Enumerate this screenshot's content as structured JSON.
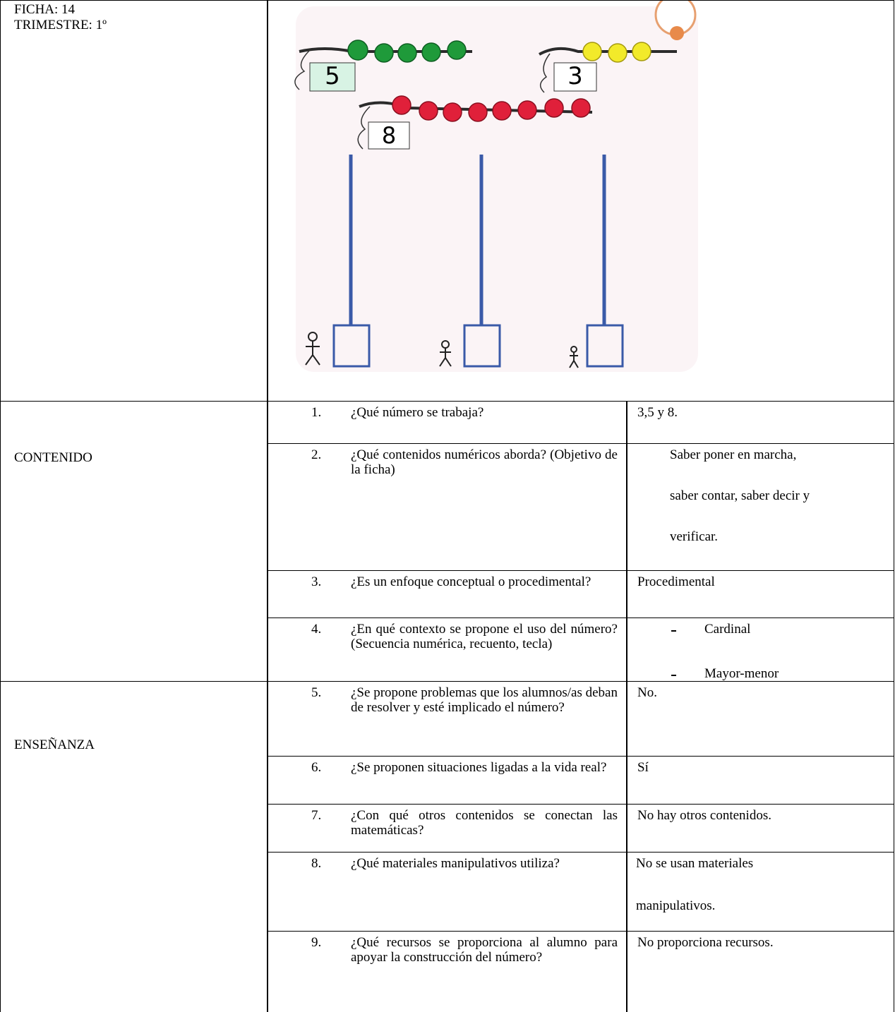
{
  "header": {
    "ficha": "FICHA: 14",
    "trimestre": "TRIMESTRE: 1º"
  },
  "illustration": {
    "tag_numbers": [
      "5",
      "3",
      "8"
    ]
  },
  "sections": [
    {
      "title": "CONTENIDO",
      "rows": [
        {
          "number": "1.",
          "question": "¿Qué número se trabaja?",
          "answer": [
            "3,5 y 8."
          ]
        },
        {
          "number": "2.",
          "question": "¿Qué contenidos numéricos aborda? (Objetivo de la ficha)",
          "answer": [
            "Saber poner en marcha,",
            "saber contar, saber decir y",
            "verificar."
          ]
        },
        {
          "number": "3.",
          "question": "¿Es un enfoque conceptual o procedimental?",
          "answer": [
            "Procedimental"
          ]
        },
        {
          "number": "4.",
          "question": "¿En qué contexto se propone el uso del número? (Secuencia numérica, recuento, tecla)",
          "answer": [
            "Cardinal",
            "Mayor-menor"
          ]
        }
      ]
    },
    {
      "title": "ENSEÑANZA",
      "rows": [
        {
          "number": "5.",
          "question": "¿Se propone problemas que los alumnos/as deban de resolver y esté implicado el número?",
          "answer": [
            "No."
          ]
        },
        {
          "number": "6.",
          "question": "¿Se proponen situaciones ligadas a la vida real?",
          "answer": [
            "Sí"
          ]
        },
        {
          "number": "7.",
          "question": "¿Con qué otros contenidos se conectan las matemáticas?",
          "answer": [
            "No hay otros contenidos."
          ]
        },
        {
          "number": "8.",
          "question": "¿Qué materiales manipulativos utiliza?",
          "answer": [
            "No se usan materiales",
            "manipulativos."
          ]
        },
        {
          "number": "9.",
          "question": "¿Qué recursos se proporciona al alumno para apoyar la construcción del número?",
          "answer": [
            "No proporciona recursos."
          ]
        }
      ]
    }
  ]
}
